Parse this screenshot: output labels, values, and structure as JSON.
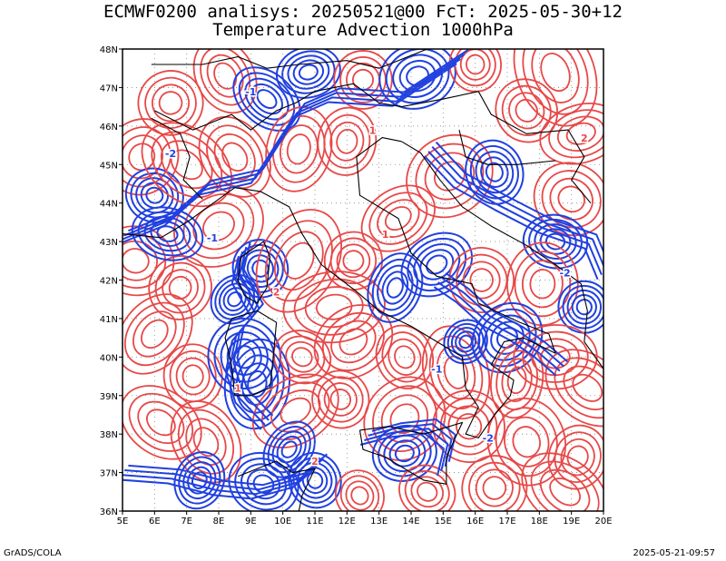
{
  "header": {
    "title_line1": "ECMWF0200 analisys: 20250521@00 FcT: 2025-05-30+12",
    "title_line2": "Temperature Advection 1000hPa"
  },
  "map": {
    "lon_range": [
      5,
      20
    ],
    "lat_range": [
      36,
      48
    ],
    "lon_labels": [
      "5E",
      "6E",
      "7E",
      "8E",
      "9E",
      "10E",
      "11E",
      "12E",
      "13E",
      "14E",
      "15E",
      "16E",
      "17E",
      "18E",
      "19E",
      "20E"
    ],
    "lat_labels": [
      "48N",
      "47N",
      "46N",
      "45N",
      "44N",
      "43N",
      "42N",
      "41N",
      "40N",
      "39N",
      "38N",
      "37N",
      "36N"
    ],
    "colors": {
      "warm": "#e84848",
      "cold": "#2040e0",
      "coast": "#000000",
      "grid": "#888888"
    },
    "contour_label_samples": [
      "-1",
      "-2",
      "1",
      "2",
      "-1",
      "2",
      "1",
      "-2",
      "1",
      "-1",
      "2",
      "-2"
    ]
  },
  "footer": {
    "left": "GrADS/COLA",
    "right": "2025-05-21-09:57"
  }
}
